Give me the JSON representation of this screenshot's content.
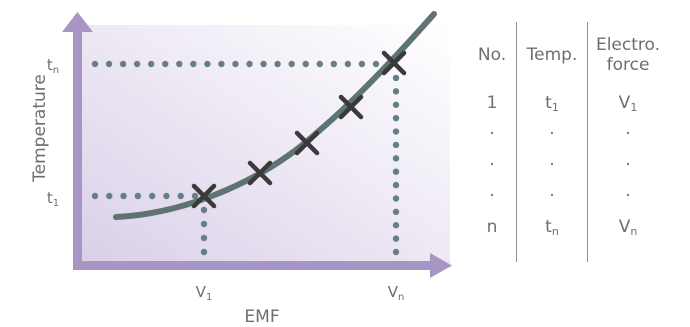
{
  "diagram": {
    "y_axis_label": "Temperature",
    "x_axis_label": "EMF",
    "y_ticks": [
      {
        "base": "t",
        "sub": "n"
      },
      {
        "base": "t",
        "sub": "1"
      }
    ],
    "x_ticks": [
      {
        "base": "V",
        "sub": "1"
      },
      {
        "base": "V",
        "sub": "n"
      }
    ],
    "colors": {
      "axis": "#a796c4",
      "curve": "#5f7472",
      "dots": "#667f86",
      "marker": "#3a3a3a"
    }
  },
  "table": {
    "headers": [
      "No.",
      "Temp.",
      "Electro.\nforce"
    ],
    "rows": [
      [
        {
          "t": "1"
        },
        {
          "t": "t",
          "s": "1"
        },
        {
          "t": "V",
          "s": "1"
        }
      ],
      [
        {
          "t": "·"
        },
        {
          "t": "·"
        },
        {
          "t": "·"
        }
      ],
      [
        {
          "t": "·"
        },
        {
          "t": "·"
        },
        {
          "t": "·"
        }
      ],
      [
        {
          "t": "·"
        },
        {
          "t": "·"
        },
        {
          "t": "·"
        }
      ],
      [
        {
          "t": "n"
        },
        {
          "t": "t",
          "s": "n"
        },
        {
          "t": "V",
          "s": "n"
        }
      ]
    ]
  }
}
